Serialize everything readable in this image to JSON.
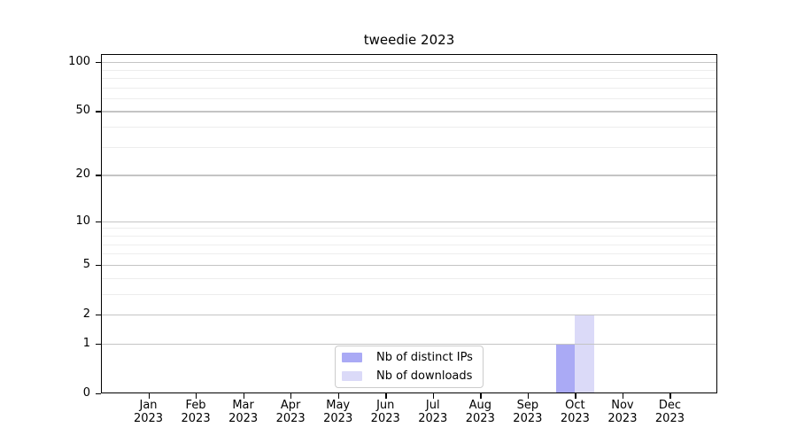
{
  "chart_data": {
    "type": "bar",
    "title": "tweedie 2023",
    "categories": [
      {
        "month": "Jan",
        "year": "2023"
      },
      {
        "month": "Feb",
        "year": "2023"
      },
      {
        "month": "Mar",
        "year": "2023"
      },
      {
        "month": "Apr",
        "year": "2023"
      },
      {
        "month": "May",
        "year": "2023"
      },
      {
        "month": "Jun",
        "year": "2023"
      },
      {
        "month": "Jul",
        "year": "2023"
      },
      {
        "month": "Aug",
        "year": "2023"
      },
      {
        "month": "Sep",
        "year": "2023"
      },
      {
        "month": "Oct",
        "year": "2023"
      },
      {
        "month": "Nov",
        "year": "2023"
      },
      {
        "month": "Dec",
        "year": "2023"
      }
    ],
    "series": [
      {
        "name": "Nb of distinct IPs",
        "color": "#aaaaf5",
        "values": [
          0,
          0,
          0,
          0,
          0,
          0,
          0,
          0,
          0,
          1,
          0,
          0
        ]
      },
      {
        "name": "Nb of downloads",
        "color": "#dbdaf8",
        "values": [
          0,
          0,
          0,
          0,
          0,
          0,
          0,
          0,
          0,
          2,
          0,
          0
        ]
      }
    ],
    "y_axis": {
      "scale": "log1p",
      "ylim": [
        0,
        112
      ],
      "major_ticks": [
        {
          "value": 0,
          "label": "0"
        },
        {
          "value": 1,
          "label": "1"
        },
        {
          "value": 2,
          "label": "2"
        },
        {
          "value": 5,
          "label": "5"
        },
        {
          "value": 10,
          "label": "10"
        },
        {
          "value": 20,
          "label": "20"
        },
        {
          "value": 50,
          "label": "50"
        },
        {
          "value": 100,
          "label": "100"
        }
      ],
      "minor_ticks": [
        3,
        4,
        6,
        7,
        8,
        9,
        30,
        40,
        60,
        70,
        80,
        90
      ]
    },
    "grid": {
      "major_color": "#c4c4c4",
      "minor_color": "#ededed"
    },
    "legend": {
      "position": "lower-center"
    },
    "colors": {
      "axis": "#000000",
      "text": "#000000",
      "legend_border": "#cccccc",
      "background": "#ffffff"
    }
  }
}
